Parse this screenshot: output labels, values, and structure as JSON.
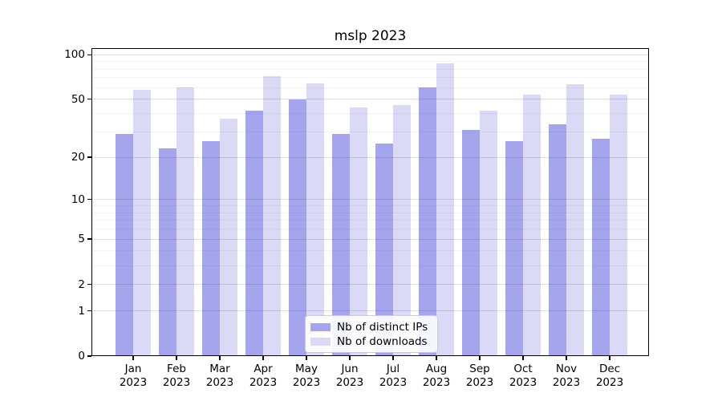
{
  "figure": {
    "title": "mslp 2023"
  },
  "legend": {
    "items": [
      {
        "label": "Nb of distinct IPs",
        "color": "#a5a5ee"
      },
      {
        "label": "Nb of downloads",
        "color": "#dadaf7"
      }
    ]
  },
  "chart_data": {
    "type": "bar",
    "title": "mslp 2023",
    "categories": [
      "Jan",
      "Feb",
      "Mar",
      "Apr",
      "May",
      "Jun",
      "Jul",
      "Aug",
      "Sep",
      "Oct",
      "Nov",
      "Dec"
    ],
    "category_year": "2023",
    "series": [
      {
        "name": "Nb of distinct IPs",
        "color": "#a5a5ee",
        "values": [
          29,
          23,
          26,
          42,
          50,
          29,
          25,
          60,
          31,
          26,
          34,
          27
        ]
      },
      {
        "name": "Nb of downloads",
        "color": "#dadaf7",
        "values": [
          58,
          60,
          37,
          72,
          64,
          44,
          46,
          88,
          42,
          54,
          63,
          54
        ]
      }
    ],
    "xlabel": "",
    "ylabel": "",
    "yscale": "log1p",
    "ylim": [
      0,
      110
    ],
    "yticks": [
      0,
      1,
      2,
      5,
      10,
      20,
      50,
      100
    ],
    "yticks_minor": [
      3,
      4,
      6,
      7,
      8,
      9,
      30,
      40,
      60,
      70,
      80,
      90
    ],
    "grid": "horizontal major+minor",
    "legend_position": "lower center"
  }
}
